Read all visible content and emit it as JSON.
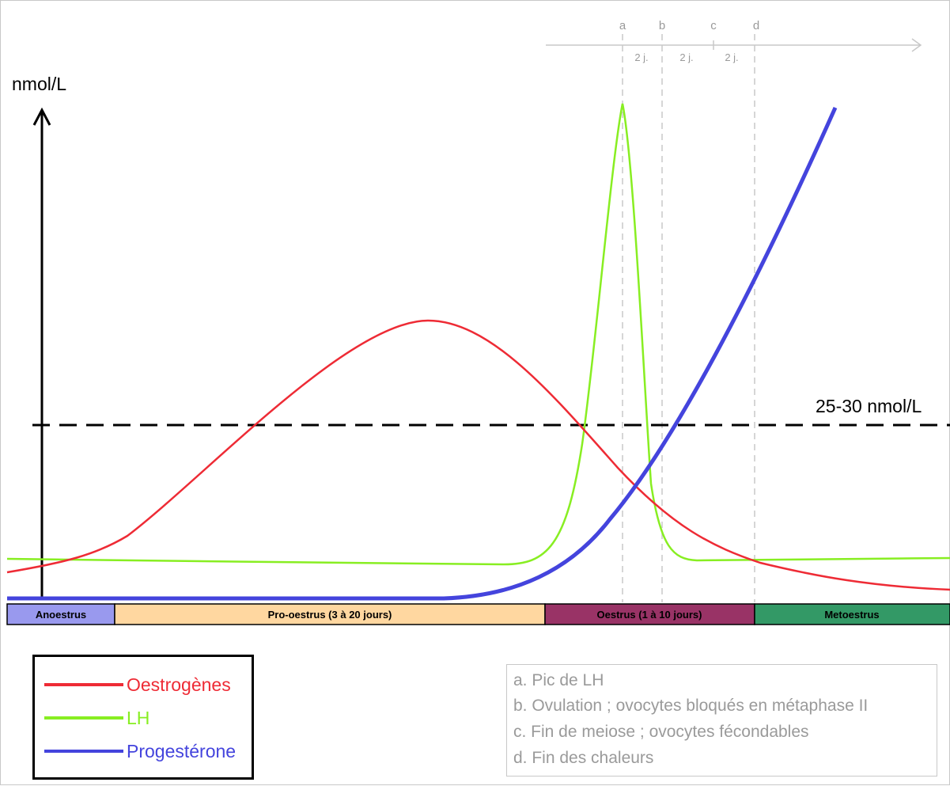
{
  "y_axis_label": "nmol/L",
  "threshold_label": "25-30 nmol/L",
  "markers": [
    {
      "letter": "a"
    },
    {
      "letter": "b"
    },
    {
      "letter": "c"
    },
    {
      "letter": "d"
    }
  ],
  "intervals": [
    "2 j.",
    "2 j.",
    "2 j."
  ],
  "phases": [
    {
      "label": "Anoestrus",
      "color": "#9999ee"
    },
    {
      "label": "Pro-oestrus (3 à 20 jours)",
      "color": "#ffd7a0"
    },
    {
      "label": "Oestrus (1 à 10 jours)",
      "color": "#993366"
    },
    {
      "label": "Metoestrus",
      "color": "#339966"
    }
  ],
  "legend": [
    {
      "label": "Oestrogènes",
      "color": "#ee2b35"
    },
    {
      "label": "LH",
      "color": "#88ee22"
    },
    {
      "label": "Progestérone",
      "color": "#4444dd"
    }
  ],
  "notes": [
    "a. Pic de LH",
    "b. Ovulation ; ovocytes bloqués en métaphase II",
    "c. Fin de meiose ; ovocytes fécondables",
    "d. Fin des chaleurs"
  ],
  "colors": {
    "oestrogenes": "#ee2b35",
    "lh": "#88ee22",
    "progesterone": "#4444dd",
    "marker_lines": "#c8c8c8",
    "threshold": "#000000"
  }
}
